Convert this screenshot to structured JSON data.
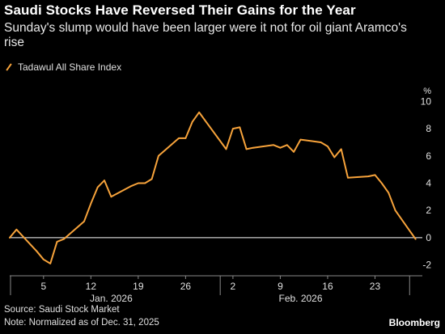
{
  "header": {
    "title": "Saudi Stocks Have Reversed Their Gains for the Year",
    "subtitle": "Sunday's slump would have been larger were it not for oil giant Aramco's rise"
  },
  "legend": {
    "label": "Tadawul All Share Index",
    "color": "#f7a33b"
  },
  "footer": {
    "source": "Source: Saudi Stock Market",
    "note": "Note: Normalized as of Dec. 31, 2025",
    "brand": "Bloomberg"
  },
  "chart_data": {
    "type": "line",
    "title": "Saudi Stocks Have Reversed Their Gains for the Year",
    "ylabel": "%",
    "ylim": [
      -2.5,
      10.5
    ],
    "y_ticks": [
      10,
      8,
      6,
      4,
      2,
      0,
      -2
    ],
    "x_range": [
      "2025-12-31",
      "2026-03-02"
    ],
    "x_ticks": [
      {
        "date": "2026-01-05",
        "label": "5"
      },
      {
        "date": "2026-01-12",
        "label": "12"
      },
      {
        "date": "2026-01-19",
        "label": "19"
      },
      {
        "date": "2026-01-26",
        "label": "26"
      },
      {
        "date": "2026-02-02",
        "label": "2"
      },
      {
        "date": "2026-02-09",
        "label": "9"
      },
      {
        "date": "2026-02-16",
        "label": "16"
      },
      {
        "date": "2026-02-23",
        "label": "23"
      }
    ],
    "month_labels": [
      {
        "date": "2026-01-15",
        "label": "Jan. 2026"
      },
      {
        "date": "2026-02-12",
        "label": "Feb. 2026"
      }
    ],
    "grid": false,
    "legend_position": "top-left",
    "series": [
      {
        "name": "Tadawul All Share Index",
        "color": "#f7a33b",
        "points": [
          {
            "x": "2025-12-31",
            "y": 0.0
          },
          {
            "x": "2026-01-01",
            "y": 0.6
          },
          {
            "x": "2026-01-04",
            "y": -1.0
          },
          {
            "x": "2026-01-05",
            "y": -1.6
          },
          {
            "x": "2026-01-06",
            "y": -1.9
          },
          {
            "x": "2026-01-07",
            "y": -0.3
          },
          {
            "x": "2026-01-08",
            "y": -0.1
          },
          {
            "x": "2026-01-11",
            "y": 1.2
          },
          {
            "x": "2026-01-12",
            "y": 2.5
          },
          {
            "x": "2026-01-13",
            "y": 3.7
          },
          {
            "x": "2026-01-14",
            "y": 4.2
          },
          {
            "x": "2026-01-15",
            "y": 3.0
          },
          {
            "x": "2026-01-18",
            "y": 3.8
          },
          {
            "x": "2026-01-19",
            "y": 4.0
          },
          {
            "x": "2026-01-20",
            "y": 4.0
          },
          {
            "x": "2026-01-21",
            "y": 4.3
          },
          {
            "x": "2026-01-22",
            "y": 6.0
          },
          {
            "x": "2026-01-25",
            "y": 7.3
          },
          {
            "x": "2026-01-26",
            "y": 7.3
          },
          {
            "x": "2026-01-27",
            "y": 8.5
          },
          {
            "x": "2026-01-28",
            "y": 9.2
          },
          {
            "x": "2026-02-01",
            "y": 6.5
          },
          {
            "x": "2026-02-02",
            "y": 8.0
          },
          {
            "x": "2026-02-03",
            "y": 8.1
          },
          {
            "x": "2026-02-04",
            "y": 6.5
          },
          {
            "x": "2026-02-05",
            "y": 6.6
          },
          {
            "x": "2026-02-08",
            "y": 6.8
          },
          {
            "x": "2026-02-09",
            "y": 6.6
          },
          {
            "x": "2026-02-10",
            "y": 6.8
          },
          {
            "x": "2026-02-11",
            "y": 6.3
          },
          {
            "x": "2026-02-12",
            "y": 7.2
          },
          {
            "x": "2026-02-15",
            "y": 7.0
          },
          {
            "x": "2026-02-16",
            "y": 6.7
          },
          {
            "x": "2026-02-17",
            "y": 5.9
          },
          {
            "x": "2026-02-18",
            "y": 6.5
          },
          {
            "x": "2026-02-19",
            "y": 4.4
          },
          {
            "x": "2026-02-22",
            "y": 4.5
          },
          {
            "x": "2026-02-23",
            "y": 4.6
          },
          {
            "x": "2026-02-24",
            "y": 4.0
          },
          {
            "x": "2026-02-25",
            "y": 3.3
          },
          {
            "x": "2026-02-26",
            "y": 2.0
          },
          {
            "x": "2026-03-01",
            "y": -0.1
          }
        ]
      }
    ]
  }
}
